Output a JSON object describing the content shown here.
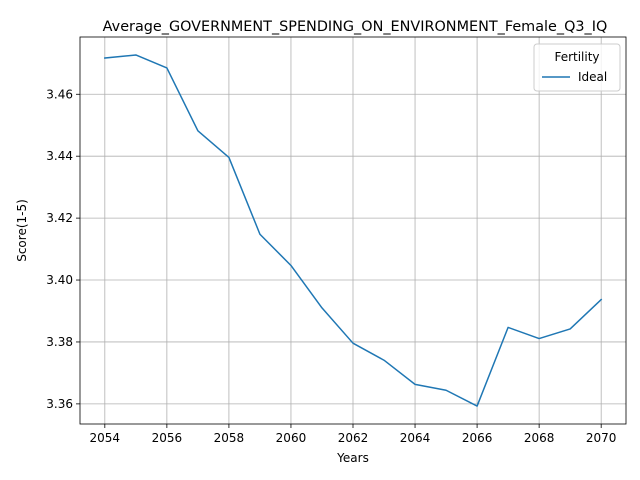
{
  "chart_data": {
    "type": "line",
    "title": "Average_GOVERNMENT_SPENDING_ON_ENVIRONMENT_Female_Q3_IQ",
    "xlabel": "Years",
    "ylabel": "Score(1-5)",
    "x": [
      2054,
      2055,
      2056,
      2057,
      2058,
      2059,
      2060,
      2061,
      2062,
      2063,
      2064,
      2065,
      2066,
      2067,
      2068,
      2069,
      2070
    ],
    "series": [
      {
        "name": "Ideal",
        "color": "#1f77b4",
        "values": [
          3.4717,
          3.4727,
          3.4685,
          3.4482,
          3.4396,
          3.4148,
          3.4047,
          3.391,
          3.3796,
          3.3741,
          3.3663,
          3.3644,
          3.3593,
          3.3847,
          3.3811,
          3.3842,
          3.3937
        ]
      }
    ],
    "xlim": [
      2053.2,
      2070.8
    ],
    "ylim": [
      3.3535,
      3.4785
    ],
    "xticks": [
      2054,
      2056,
      2058,
      2060,
      2062,
      2064,
      2066,
      2068,
      2070
    ],
    "yticks": [
      3.36,
      3.38,
      3.4,
      3.42,
      3.44,
      3.46
    ],
    "ytick_labels": [
      "3.36",
      "3.38",
      "3.40",
      "3.42",
      "3.44",
      "3.46"
    ],
    "grid": true,
    "legend": {
      "title": "Fertility",
      "placement": "top-right"
    }
  }
}
